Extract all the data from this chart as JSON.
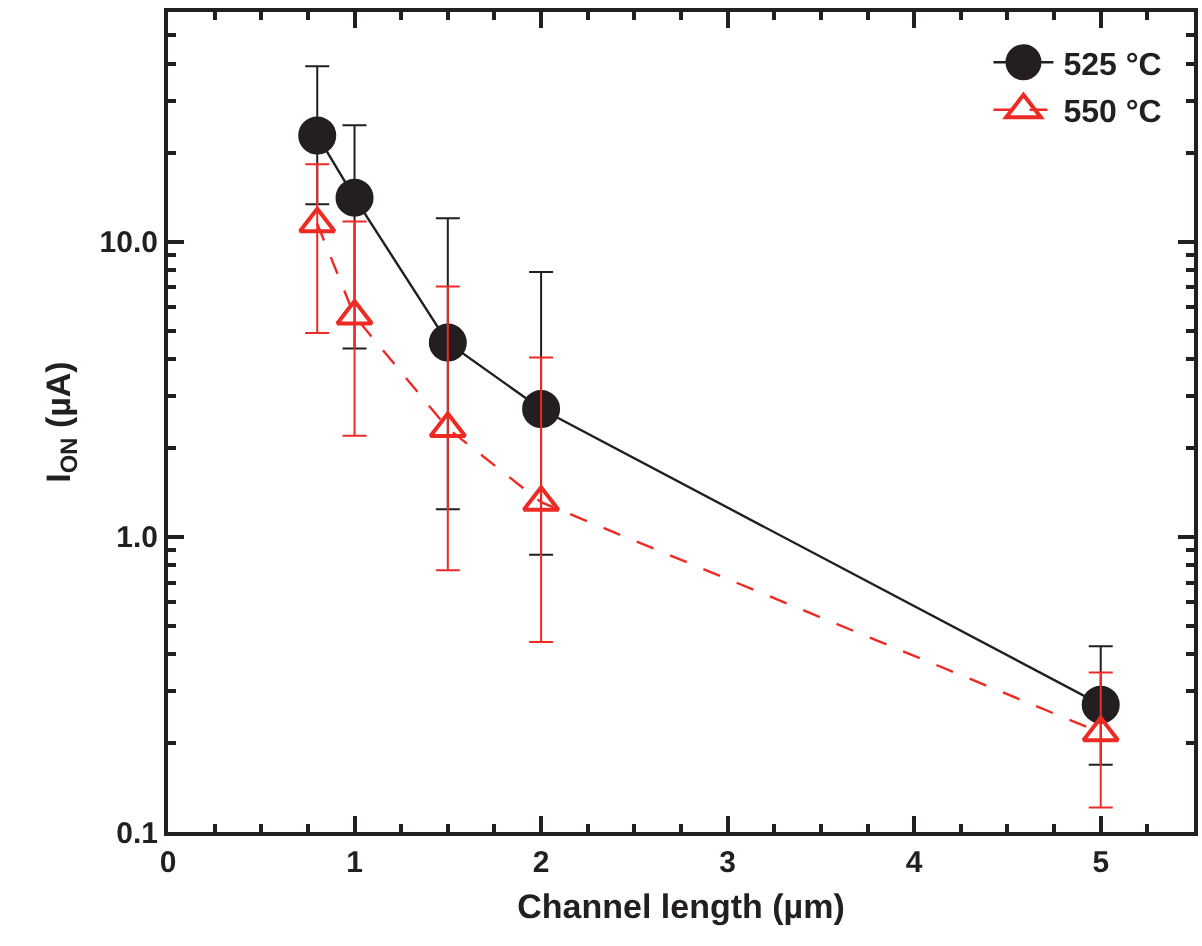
{
  "chart_data": {
    "type": "line",
    "xlabel": "Channel length (µm)",
    "ylabel": "I$_{ON}$ (µA)",
    "log": "y",
    "grid": false,
    "legend": "top right",
    "x": [
      0.8,
      1,
      1.5,
      2,
      5
    ],
    "xlim": [
      0,
      5.5
    ],
    "xticks": [
      0,
      1,
      2,
      3,
      4,
      5
    ],
    "ylim": [
      0.1,
      60
    ],
    "yticks": [
      {
        "value": 0.1,
        "label": "0.1"
      },
      {
        "value": 1,
        "label": "1.0"
      },
      {
        "value": 10,
        "label": "10.0"
      }
    ],
    "series": [
      {
        "name": "525 °C",
        "color": "#231f20",
        "marker": "circle",
        "line_style": "solid",
        "values": [
          22.9,
          14.1,
          4.55,
          2.71,
          0.27
        ],
        "errors": [
          [
            13.4,
            39.3
          ],
          [
            4.35,
            24.8
          ],
          [
            1.24,
            12.0
          ],
          [
            0.87,
            7.9
          ],
          [
            0.169,
            0.426
          ]
        ]
      },
      {
        "name": "550 °C",
        "color": "#ee2a24",
        "marker": "triangle",
        "line_style": "dashed",
        "values": [
          11.5,
          5.6,
          2.33,
          1.31,
          0.217
        ],
        "errors": [
          [
            4.9,
            18.3
          ],
          [
            2.2,
            11.7
          ],
          [
            0.77,
            7.05
          ],
          [
            0.44,
            4.05
          ],
          [
            0.121,
            0.347
          ]
        ]
      }
    ]
  }
}
